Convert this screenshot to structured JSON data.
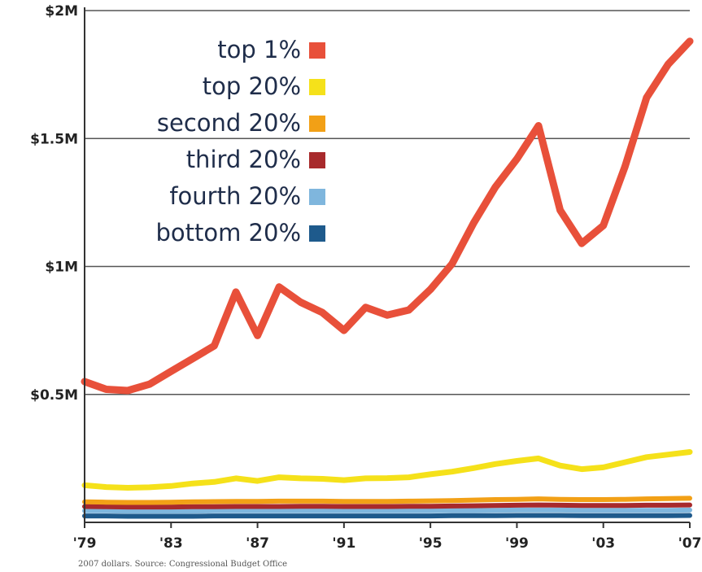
{
  "chart_data": {
    "type": "line",
    "source_note": "2007 dollars. Source: Congressional Budget Office",
    "y_ticks": [
      {
        "value": 2000000,
        "label": "$2M"
      },
      {
        "value": 1500000,
        "label": "$1.5M"
      },
      {
        "value": 1000000,
        "label": "$1M"
      },
      {
        "value": 500000,
        "label": "$0.5M"
      }
    ],
    "x_ticks": [
      {
        "value": 1979,
        "label": "'79"
      },
      {
        "value": 1983,
        "label": "'83"
      },
      {
        "value": 1987,
        "label": "'87"
      },
      {
        "value": 1991,
        "label": "'91"
      },
      {
        "value": 1995,
        "label": "'95"
      },
      {
        "value": 1999,
        "label": "'99"
      },
      {
        "value": 2003,
        "label": "'03"
      },
      {
        "value": 2007,
        "label": "'07"
      }
    ],
    "xlim": [
      1979,
      2007
    ],
    "ylim": [
      0,
      2000000
    ],
    "grid": true,
    "legend_position": "top-left",
    "x": [
      1979,
      1980,
      1981,
      1982,
      1983,
      1984,
      1985,
      1986,
      1987,
      1988,
      1989,
      1990,
      1991,
      1992,
      1993,
      1994,
      1995,
      1996,
      1997,
      1998,
      1999,
      2000,
      2001,
      2002,
      2003,
      2004,
      2005,
      2006,
      2007
    ],
    "series": [
      {
        "name": "top 1%",
        "color": "#e8503a",
        "values": [
          550000,
          520000,
          515000,
          540000,
          590000,
          640000,
          690000,
          900000,
          730000,
          920000,
          860000,
          820000,
          750000,
          840000,
          810000,
          830000,
          910000,
          1010000,
          1170000,
          1310000,
          1420000,
          1550000,
          1220000,
          1090000,
          1160000,
          1390000,
          1660000,
          1790000,
          1880000
        ]
      },
      {
        "name": "top 20%",
        "color": "#f5e11a",
        "values": [
          145000,
          138000,
          135000,
          137000,
          142000,
          152000,
          158000,
          172000,
          162000,
          176000,
          172000,
          170000,
          165000,
          172000,
          173000,
          176000,
          188000,
          198000,
          212000,
          228000,
          240000,
          250000,
          222000,
          208000,
          215000,
          235000,
          255000,
          265000,
          275000
        ]
      },
      {
        "name": "second 20%",
        "color": "#f2a016",
        "values": [
          80000,
          79000,
          78000,
          78000,
          79000,
          80000,
          81000,
          82000,
          82000,
          83000,
          83000,
          83000,
          82000,
          82000,
          82000,
          83000,
          84000,
          85000,
          87000,
          89000,
          90000,
          92000,
          90000,
          89000,
          89000,
          90000,
          92000,
          93000,
          94000
        ]
      },
      {
        "name": "third 20%",
        "color": "#a82a2c",
        "values": [
          62000,
          61000,
          60000,
          60000,
          60000,
          61000,
          61000,
          62000,
          62000,
          62000,
          63000,
          63000,
          62000,
          62000,
          62000,
          63000,
          63000,
          64000,
          65000,
          66000,
          67000,
          68000,
          67000,
          66000,
          66000,
          66000,
          67000,
          67000,
          68000
        ]
      },
      {
        "name": "fourth 20%",
        "color": "#7fb6dd",
        "values": [
          45000,
          45000,
          44000,
          44000,
          44000,
          44000,
          45000,
          45000,
          45000,
          45000,
          45000,
          45000,
          45000,
          45000,
          45000,
          45000,
          45000,
          46000,
          46000,
          47000,
          48000,
          48000,
          48000,
          47000,
          47000,
          47000,
          47000,
          47000,
          48000
        ]
      },
      {
        "name": "bottom 20%",
        "color": "#1e5a8c",
        "values": [
          25000,
          25000,
          24000,
          24000,
          24000,
          24000,
          25000,
          25000,
          25000,
          25000,
          25000,
          25000,
          25000,
          25000,
          25000,
          25000,
          25000,
          26000,
          26000,
          26000,
          27000,
          27000,
          27000,
          26000,
          26000,
          26000,
          26000,
          26000,
          27000
        ]
      }
    ]
  }
}
